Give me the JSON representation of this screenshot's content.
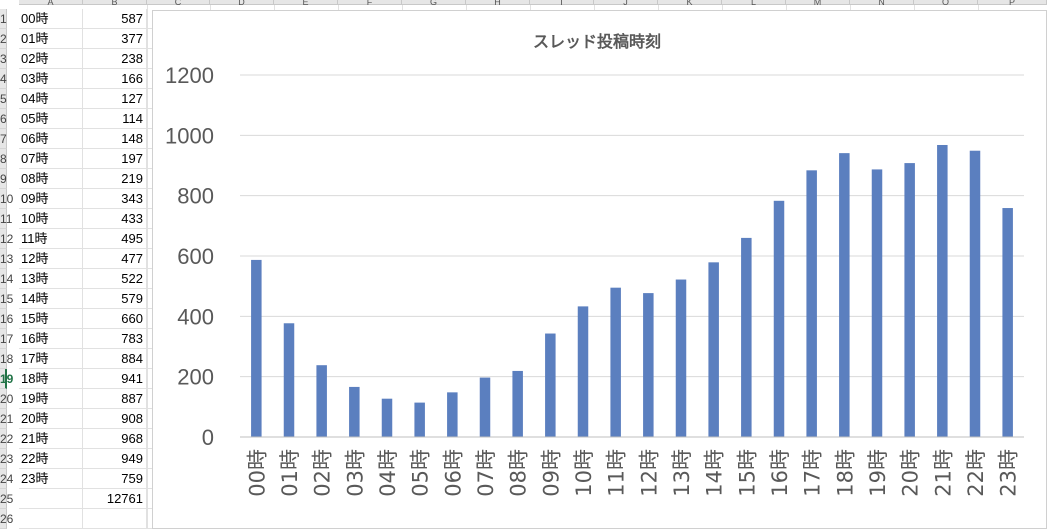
{
  "sheet": {
    "column_headers": [
      "A",
      "B",
      "C",
      "D",
      "E",
      "F",
      "G",
      "H",
      "I",
      "J",
      "K",
      "L",
      "M",
      "N",
      "O",
      "P"
    ],
    "rows": [
      {
        "num": "1",
        "label": "00時",
        "value": "587"
      },
      {
        "num": "2",
        "label": "01時",
        "value": "377"
      },
      {
        "num": "3",
        "label": "02時",
        "value": "238"
      },
      {
        "num": "4",
        "label": "03時",
        "value": "166"
      },
      {
        "num": "5",
        "label": "04時",
        "value": "127"
      },
      {
        "num": "6",
        "label": "05時",
        "value": "114"
      },
      {
        "num": "7",
        "label": "06時",
        "value": "148"
      },
      {
        "num": "8",
        "label": "07時",
        "value": "197"
      },
      {
        "num": "9",
        "label": "08時",
        "value": "219"
      },
      {
        "num": "10",
        "label": "09時",
        "value": "343"
      },
      {
        "num": "11",
        "label": "10時",
        "value": "433"
      },
      {
        "num": "12",
        "label": "11時",
        "value": "495"
      },
      {
        "num": "13",
        "label": "12時",
        "value": "477"
      },
      {
        "num": "14",
        "label": "13時",
        "value": "522"
      },
      {
        "num": "15",
        "label": "14時",
        "value": "579"
      },
      {
        "num": "16",
        "label": "15時",
        "value": "660"
      },
      {
        "num": "17",
        "label": "16時",
        "value": "783"
      },
      {
        "num": "18",
        "label": "17時",
        "value": "884"
      },
      {
        "num": "19",
        "label": "18時",
        "value": "941"
      },
      {
        "num": "20",
        "label": "19時",
        "value": "887"
      },
      {
        "num": "21",
        "label": "20時",
        "value": "908"
      },
      {
        "num": "22",
        "label": "21時",
        "value": "968"
      },
      {
        "num": "23",
        "label": "22時",
        "value": "949"
      },
      {
        "num": "24",
        "label": "23時",
        "value": "759"
      },
      {
        "num": "25",
        "label": "",
        "value": "12761"
      },
      {
        "num": "26",
        "label": "",
        "value": ""
      }
    ],
    "selected_row": "19"
  },
  "chart_data": {
    "type": "bar",
    "title": "スレッド投稿時刻",
    "categories": [
      "00時",
      "01時",
      "02時",
      "03時",
      "04時",
      "05時",
      "06時",
      "07時",
      "08時",
      "09時",
      "10時",
      "11時",
      "12時",
      "13時",
      "14時",
      "15時",
      "16時",
      "17時",
      "18時",
      "19時",
      "20時",
      "21時",
      "22時",
      "23時"
    ],
    "values": [
      587,
      377,
      238,
      166,
      127,
      114,
      148,
      197,
      219,
      343,
      433,
      495,
      477,
      522,
      579,
      660,
      783,
      884,
      941,
      887,
      908,
      968,
      949,
      759
    ],
    "ylim": [
      0,
      1200
    ],
    "yticks": [
      0,
      200,
      400,
      600,
      800,
      1000,
      1200
    ],
    "grid": true,
    "legend": "none",
    "bar_color": "#5b7fbf",
    "gridline_color": "#d9d9d9",
    "tick_label_color": "#595959"
  }
}
